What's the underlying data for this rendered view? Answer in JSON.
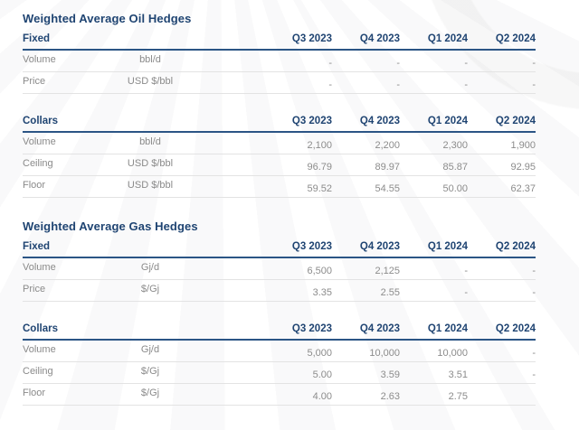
{
  "colors": {
    "navy_text": "#1F4472",
    "header_rule": "#2B5585",
    "label_gray": "#8A8A8A",
    "value_gray": "#8C8C8C",
    "row_border": "#E3E3E3",
    "background": "#FFFFFF",
    "watermark_tint": "#F5F5F6"
  },
  "oil": {
    "title": "Weighted Average Oil Hedges",
    "fixed": {
      "label": "Fixed",
      "columns": [
        "Q3 2023",
        "Q4 2023",
        "Q1 2024",
        "Q2 2024"
      ],
      "rows": [
        {
          "label": "Volume",
          "unit": "bbl/d",
          "values": [
            "-",
            "-",
            "-",
            "-"
          ]
        },
        {
          "label": "Price",
          "unit": "USD $/bbl",
          "values": [
            "-",
            "-",
            "-",
            "-"
          ]
        }
      ]
    },
    "collars": {
      "label": "Collars",
      "columns": [
        "Q3 2023",
        "Q4 2023",
        "Q1 2024",
        "Q2 2024"
      ],
      "rows": [
        {
          "label": "Volume",
          "unit": "bbl/d",
          "values": [
            "2,100",
            "2,200",
            "2,300",
            "1,900"
          ]
        },
        {
          "label": "Ceiling",
          "unit": "USD $/bbl",
          "values": [
            "96.79",
            "89.97",
            "85.87",
            "92.95"
          ]
        },
        {
          "label": "Floor",
          "unit": "USD $/bbl",
          "values": [
            "59.52",
            "54.55",
            "50.00",
            "62.37"
          ]
        }
      ]
    }
  },
  "gas": {
    "title": "Weighted Average Gas Hedges",
    "fixed": {
      "label": "Fixed",
      "columns": [
        "Q3 2023",
        "Q4 2023",
        "Q1 2024",
        "Q2 2024"
      ],
      "rows": [
        {
          "label": "Volume",
          "unit": "Gj/d",
          "values": [
            "6,500",
            "2,125",
            "-",
            "-"
          ]
        },
        {
          "label": "Price",
          "unit": "$/Gj",
          "values": [
            "3.35",
            "2.55",
            "-",
            "-"
          ]
        }
      ]
    },
    "collars": {
      "label": "Collars",
      "columns": [
        "Q3 2023",
        "Q4 2023",
        "Q1 2024",
        "Q2 2024"
      ],
      "rows": [
        {
          "label": "Volume",
          "unit": "Gj/d",
          "values": [
            "5,000",
            "10,000",
            "10,000",
            "-"
          ]
        },
        {
          "label": "Ceiling",
          "unit": "$/Gj",
          "values": [
            "5.00",
            "3.59",
            "3.51",
            "-"
          ]
        },
        {
          "label": "Floor",
          "unit": "$/Gj",
          "values": [
            "4.00",
            "2.63",
            "2.75",
            ""
          ]
        }
      ]
    }
  }
}
